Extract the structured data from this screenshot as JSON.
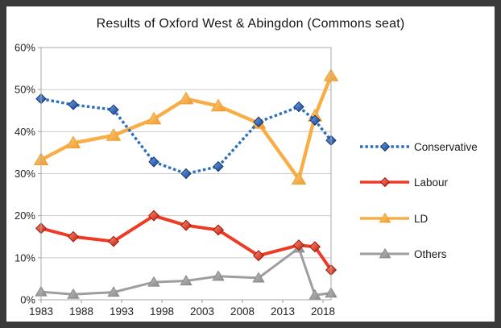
{
  "chart_data": {
    "type": "line",
    "title": "Results of Oxford West & Abingdon (Commons seat)",
    "x": [
      1983,
      1987,
      1992,
      1997,
      2001,
      2005,
      2010,
      2015,
      2017,
      2019
    ],
    "xlim": [
      1983,
      2019
    ],
    "ylim": [
      0,
      60
    ],
    "x_ticks": [
      1983,
      1988,
      1993,
      1998,
      2003,
      2008,
      2013,
      2018
    ],
    "x_tick_labels": [
      "1983",
      "1988",
      "1993",
      "1998",
      "2003",
      "2008",
      "2013",
      "2018"
    ],
    "y_ticks": [
      0,
      10,
      20,
      30,
      40,
      50,
      60
    ],
    "y_tick_labels": [
      "0%",
      "10%",
      "20%",
      "30%",
      "40%",
      "50%",
      "60%"
    ],
    "grid": "horizontal",
    "legend_position": "right",
    "colors": {
      "grid_line": "#cbcbcb",
      "axis_line": "#a9a9a9",
      "tick_mark": "#9e9e9e",
      "tick_label": "#242424",
      "legend_text": "#1b1b1b",
      "frame_border": "#3a3a3a",
      "background": "#ffffff"
    },
    "series": [
      {
        "name": "Conservative",
        "values": [
          47.8,
          46.4,
          45.2,
          32.8,
          30.0,
          31.7,
          42.3,
          45.9,
          42.7,
          37.9
        ],
        "color": "#2e6fc0",
        "line_style": "dotted",
        "marker": "diamond",
        "marker_colors": [
          "#6ea3e8",
          "#16418f"
        ],
        "marker_edge": "#12356f"
      },
      {
        "name": "Labour",
        "values": [
          17.0,
          15.0,
          13.9,
          20.0,
          17.7,
          16.6,
          10.5,
          13.0,
          12.6,
          7.1
        ],
        "color": "#ee3b26",
        "line_style": "solid",
        "marker": "diamond",
        "marker_colors": [
          "#ff8d6e",
          "#c21d10"
        ],
        "marker_edge": "#9c170c"
      },
      {
        "name": "LD",
        "values": [
          33.3,
          37.3,
          39.1,
          43.0,
          47.8,
          46.1,
          42.0,
          28.7,
          43.7,
          53.3
        ],
        "color": "#f9ad45",
        "line_style": "solid",
        "marker": "triangle",
        "marker_colors": [
          "#fdcd80",
          "#f2992b"
        ],
        "marker_edge": "#eda030"
      },
      {
        "name": "Others",
        "values": [
          1.9,
          1.3,
          1.8,
          4.2,
          4.5,
          5.6,
          5.2,
          12.3,
          1.1,
          1.6
        ],
        "color": "#9e9e9e",
        "line_style": "solid",
        "marker": "triangle",
        "marker_colors": [
          "#bcbcbc",
          "#8c8c8c"
        ],
        "marker_edge": "#898989"
      }
    ]
  }
}
